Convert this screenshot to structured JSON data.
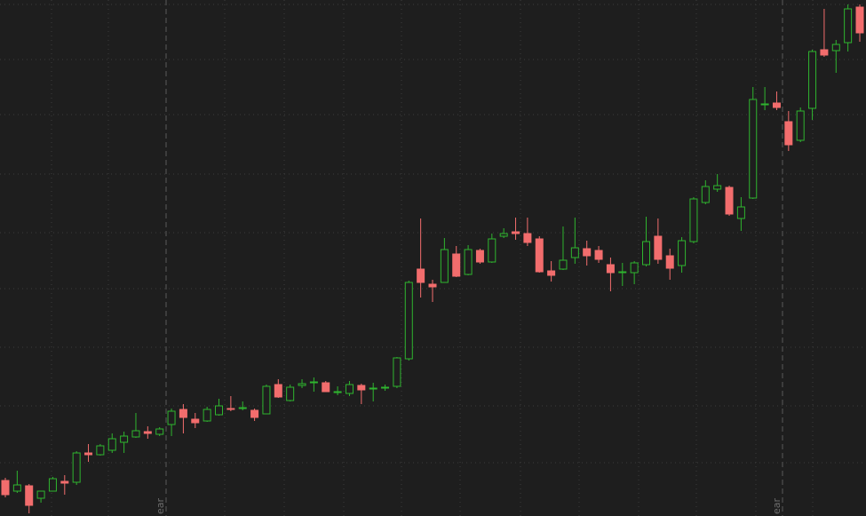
{
  "chart_data": {
    "type": "candlestick",
    "up_color": "#2fb52f",
    "down_color": "#f26d6d",
    "ylim": [
      0,
      581
    ],
    "yticks": [
      60,
      124,
      190,
      256,
      319,
      385,
      452,
      514,
      576
    ],
    "grid": true,
    "annotations": [
      "ear",
      "ear"
    ],
    "series": [
      {
        "name": "open",
        "values": [
          40,
          28,
          34,
          20,
          28,
          39,
          38,
          71,
          69,
          74,
          83,
          89,
          95,
          92,
          103,
          120,
          109,
          107,
          114,
          121,
          121,
          119,
          115,
          148,
          130,
          147,
          150,
          150,
          139,
          138,
          147,
          143,
          144,
          146,
          177,
          278,
          261,
          263,
          295,
          272,
          299,
          286,
          315,
          320,
          318,
          312,
          276,
          278,
          291,
          301,
          299,
          283,
          274,
          274,
          283,
          315,
          293,
          282,
          309,
          353,
          368,
          370,
          335,
          358,
          463,
          465,
          444,
          423,
          459,
          525,
          524,
          533,
          573
        ]
      },
      {
        "name": "high",
        "values": [
          43,
          51,
          36,
          28,
          44,
          46,
          73,
          81,
          81,
          93,
          95,
          116,
          101,
          100,
          121,
          126,
          116,
          123,
          132,
          135,
          129,
          121,
          148,
          154,
          148,
          154,
          156,
          152,
          146,
          152,
          149,
          150,
          148,
          179,
          265,
          335,
          266,
          313,
          304,
          305,
          301,
          318,
          324,
          336,
          336,
          315,
          287,
          326,
          336,
          310,
          304,
          291,
          285,
          287,
          337,
          335,
          301,
          314,
          359,
          378,
          385,
          372,
          359,
          483,
          483,
          478,
          456,
          460,
          525,
          571,
          536,
          576,
          576
        ]
      },
      {
        "name": "low",
        "values": [
          21,
          26,
          3,
          15,
          28,
          24,
          35,
          61,
          68,
          71,
          71,
          88,
          87,
          90,
          90,
          93,
          99,
          106,
          113,
          118,
          119,
          107,
          115,
          133,
          129,
          144,
          140,
          140,
          136,
          135,
          126,
          129,
          141,
          144,
          175,
          246,
          241,
          263,
          269,
          271,
          284,
          285,
          313,
          311,
          304,
          274,
          264,
          277,
          284,
          282,
          285,
          253,
          259,
          261,
          281,
          284,
          266,
          274,
          307,
          351,
          365,
          338,
          321,
          357,
          457,
          457,
          411,
          421,
          446,
          517,
          499,
          523,
          534
        ]
      },
      {
        "name": "close",
        "values": [
          24,
          35,
          12,
          28,
          42,
          37,
          71,
          69,
          79,
          87,
          90,
          96,
          93,
          98,
          118,
          111,
          105,
          120,
          124,
          120,
          122,
          111,
          146,
          134,
          145,
          149,
          151,
          140,
          140,
          148,
          142,
          144,
          145,
          178,
          263,
          263,
          258,
          300,
          270,
          300,
          286,
          312,
          318,
          318,
          308,
          275,
          271,
          288,
          302,
          293,
          289,
          274,
          275,
          285,
          309,
          289,
          279,
          310,
          357,
          371,
          372,
          340,
          348,
          469,
          464,
          460,
          418,
          456,
          523,
          519,
          531,
          571,
          544
        ]
      }
    ]
  }
}
